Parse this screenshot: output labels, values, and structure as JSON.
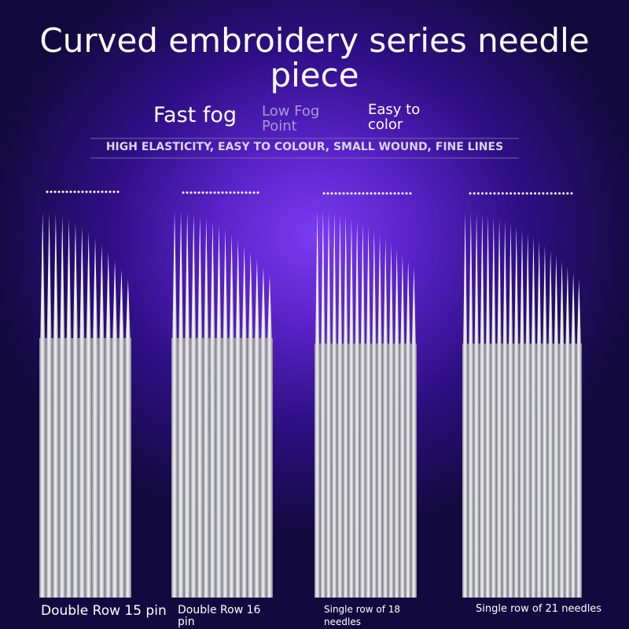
{
  "header": {
    "title": "Curved embroidery series needle piece"
  },
  "features": [
    {
      "label": "Fast fog"
    },
    {
      "label": "Low Fog Point"
    },
    {
      "label": "Easy to color"
    }
  ],
  "tagline": "HIGH ELASTICITY, EASY TO COLOUR, SMALL WOUND, FINE LINES",
  "products": [
    {
      "label": "Double Row 15 pin"
    },
    {
      "label": "Double Row 16 pin"
    },
    {
      "label": "Single row of 18 needles"
    },
    {
      "label": "Single row of 21 needles"
    }
  ]
}
